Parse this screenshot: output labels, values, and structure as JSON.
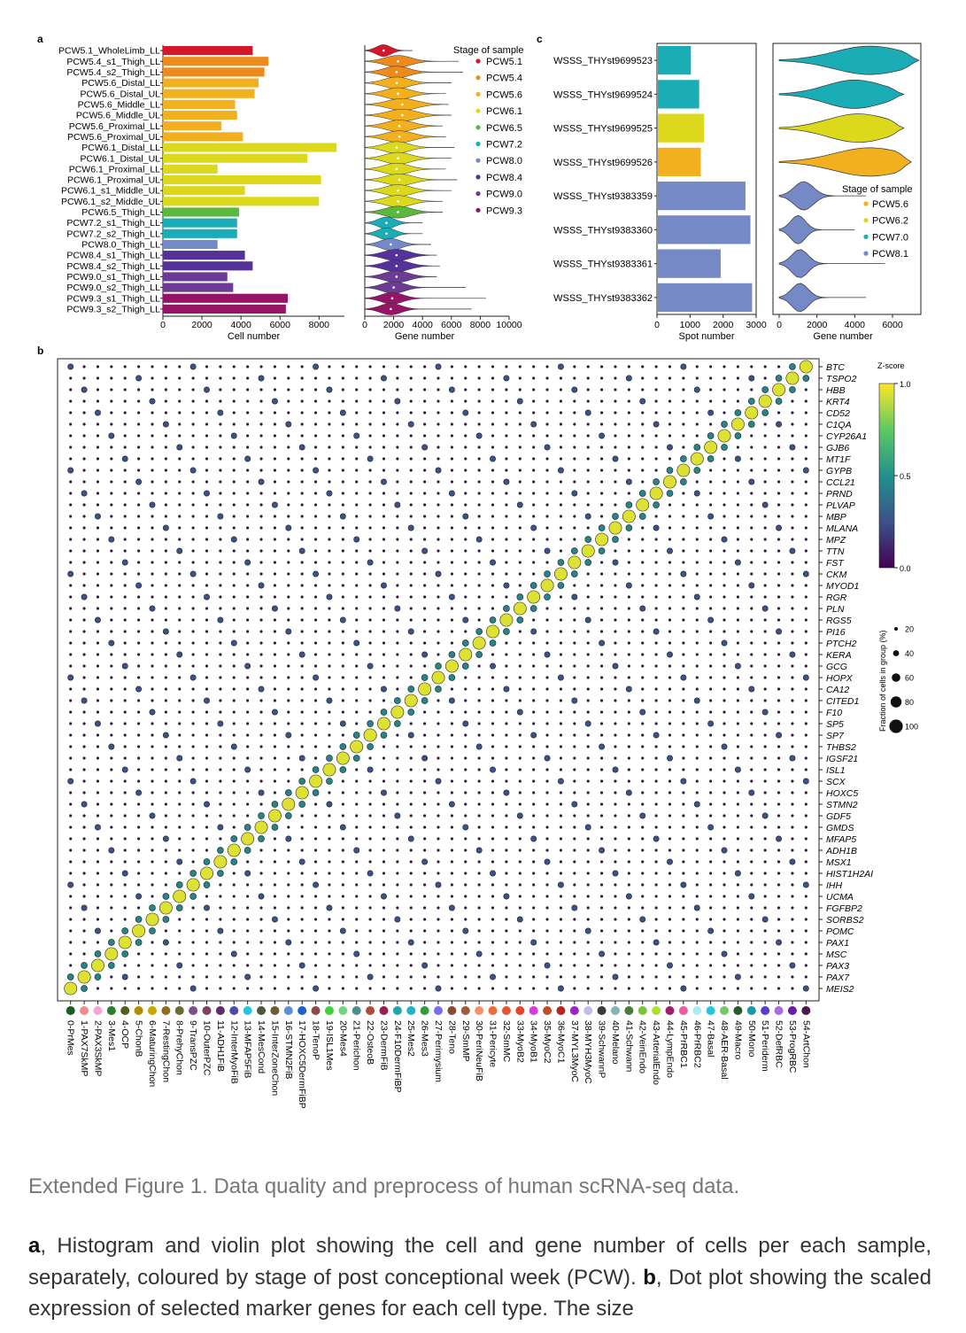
{
  "figure": {
    "panel_a_label": "a",
    "panel_b_label": "b",
    "panel_c_label": "c",
    "legend_title_a": "Stage of sample",
    "legend_title_c": "Stage of sample",
    "zscore_title": "Z-score",
    "zscore_ticks": [
      "1.0",
      "0.5",
      "0.0"
    ],
    "fraction_title": "Fraction of cells in group (%)",
    "fraction_levels": [
      "20",
      "40",
      "60",
      "80",
      "100"
    ]
  },
  "stage_colors": {
    "PCW5.1": "#d4172b",
    "PCW5.4": "#ec8a1c",
    "PCW5.6": "#f2b01e",
    "PCW6.1": "#dcd81c",
    "PCW6.5": "#5ab83c",
    "PCW7.2": "#1aadb6",
    "PCW8.0": "#7589c6",
    "PCW8.4": "#55329a",
    "PCW9.0": "#6c3c94",
    "PCW9.3": "#951468"
  },
  "legend_a": [
    "PCW5.1",
    "PCW5.4",
    "PCW5.6",
    "PCW6.1",
    "PCW6.5",
    "PCW7.2",
    "PCW8.0",
    "PCW8.4",
    "PCW9.0",
    "PCW9.3"
  ],
  "legend_c": [
    "PCW5.6",
    "PCW6.2",
    "PCW7.0",
    "PCW8.1"
  ],
  "legend_c_colors": [
    "#f2b01e",
    "#dcd81c",
    "#1aadb6",
    "#7589c6"
  ],
  "chart_data": [
    {
      "type": "bar",
      "orientation": "horizontal",
      "xlabel": "Cell number",
      "xlim": [
        0,
        9300
      ],
      "xticks": [
        0,
        2000,
        4000,
        6000,
        8000
      ],
      "categories": [
        "PCW5.1_WholeLimb_LL",
        "PCW5.4_s1_Thigh_LL",
        "PCW5.4_s2_Thigh_LL",
        "PCW5.6_Distal_LL",
        "PCW5.6_Distal_UL",
        "PCW5.6_Middle_LL",
        "PCW5.6_Middle_UL",
        "PCW5.6_Proximal_LL",
        "PCW5.6_Proximal_UL",
        "PCW6.1_Distal_LL",
        "PCW6.1_Distal_UL",
        "PCW6.1_Proximal_LL",
        "PCW6.1_Proximal_UL",
        "PCW6.1_s1_Middle_UL",
        "PCW6.1_s2_Middle_UL",
        "PCW6.5_Thigh_LL",
        "PCW7.2_s1_Thigh_LL",
        "PCW7.2_s2_Thigh_LL",
        "PCW8.0_Thigh_LL",
        "PCW8.4_s1_Thigh_LL",
        "PCW8.4_s2_Thigh_LL",
        "PCW9.0_s1_Thigh_LL",
        "PCW9.0_s2_Thigh_LL",
        "PCW9.3_s1_Thigh_LL",
        "PCW9.3_s2_Thigh_LL"
      ],
      "values": [
        4600,
        5400,
        5200,
        4900,
        4700,
        3700,
        3800,
        3000,
        4100,
        8900,
        7400,
        2800,
        8100,
        4200,
        8000,
        3900,
        3800,
        3800,
        2800,
        4200,
        4600,
        3300,
        3600,
        6400,
        6300
      ],
      "stages": [
        "PCW5.1",
        "PCW5.4",
        "PCW5.4",
        "PCW5.6",
        "PCW5.6",
        "PCW5.6",
        "PCW5.6",
        "PCW5.6",
        "PCW5.6",
        "PCW6.1",
        "PCW6.1",
        "PCW6.1",
        "PCW6.1",
        "PCW6.1",
        "PCW6.1",
        "PCW6.5",
        "PCW7.2",
        "PCW7.2",
        "PCW8.0",
        "PCW8.4",
        "PCW8.4",
        "PCW9.0",
        "PCW9.0",
        "PCW9.3",
        "PCW9.3"
      ]
    },
    {
      "type": "violin",
      "xlabel": "Gene number",
      "xlim": [
        0,
        10000
      ],
      "xticks": [
        0,
        2000,
        4000,
        6000,
        8000,
        10000
      ],
      "medians": [
        1300,
        2300,
        2200,
        2200,
        2300,
        2600,
        2600,
        2400,
        2400,
        2200,
        2300,
        2200,
        2400,
        2300,
        2300,
        2300,
        1500,
        1500,
        1800,
        2200,
        2200,
        2200,
        2000,
        1900,
        1800
      ],
      "max": [
        3300,
        6500,
        6800,
        6000,
        5600,
        5800,
        6000,
        5400,
        5600,
        6200,
        6000,
        5600,
        6400,
        6000,
        5400,
        5400,
        4000,
        4000,
        4600,
        5000,
        5200,
        5000,
        7000,
        8400,
        7400
      ]
    },
    {
      "type": "bar",
      "orientation": "horizontal",
      "xlabel": "Spot number",
      "xlim": [
        0,
        3000
      ],
      "xticks": [
        0,
        1000,
        2000,
        3000
      ],
      "categories": [
        "WSSS_THYst9699523",
        "WSSS_THYst9699524",
        "WSSS_THYst9699525",
        "WSSS_THYst9699526",
        "WSSS_THYst9383359",
        "WSSS_THYst9383360",
        "WSSS_THYst9383361",
        "WSSS_THYst9383362"
      ],
      "values": [
        1000,
        1250,
        1400,
        1300,
        2650,
        2800,
        1900,
        2850
      ],
      "stages": [
        "PCW7.0",
        "PCW7.0",
        "PCW6.2",
        "PCW5.6",
        "PCW8.1",
        "PCW8.1",
        "PCW8.1",
        "PCW8.1"
      ]
    },
    {
      "type": "violin",
      "xlabel": "Gene number",
      "xlim": [
        0,
        7500
      ],
      "xticks": [
        0,
        2000,
        4000,
        6000
      ],
      "medians": [
        4800,
        4000,
        4200,
        4800,
        1300,
        1000,
        1100,
        1100
      ],
      "max": [
        7400,
        6600,
        6600,
        7000,
        4600,
        4000,
        5600,
        4600
      ]
    },
    {
      "type": "dot",
      "genes": [
        "BTC",
        "TSPO2",
        "HBB",
        "KRT4",
        "CD52",
        "C1QA",
        "CYP26A1",
        "GJB6",
        "MT1F",
        "GYPB",
        "CCL21",
        "PRND",
        "PLVAP",
        "MBP",
        "MLANA",
        "MPZ",
        "TTN",
        "FST",
        "CKM",
        "MYOD1",
        "RGR",
        "PLN",
        "RGS5",
        "PI16",
        "PTCH2",
        "KERA",
        "GCG",
        "HOPX",
        "CA12",
        "CITED1",
        "F10",
        "SP5",
        "SP7",
        "THBS2",
        "IGSF21",
        "ISL1",
        "SCX",
        "HOXC5",
        "STMN2",
        "GDF5",
        "GMDS",
        "MFAP5",
        "ADH1B",
        "MSX1",
        "HIST1H2AI",
        "IHH",
        "UCMA",
        "FGFBP2",
        "SORBS2",
        "POMC",
        "PAX1",
        "MSC",
        "PAX3",
        "PAX7",
        "MEIS2"
      ],
      "cell_types": [
        "0-PrMes",
        "1-PAX7SkMP",
        "2-PAX3SkMP",
        "3-Mes1",
        "4-OCP",
        "5-ChonB",
        "6-MaturingChon",
        "7-RestingChon",
        "8-PrehyChon",
        "9-TransPZC",
        "10-OuterPZC",
        "11-ADH1FiB",
        "12-InterMyoFiB",
        "13-MFAP5FiB",
        "14-MesCond",
        "15-InterZoneChon",
        "16-STMN2FiB",
        "17-HOXC5DermFiBP",
        "18-TenoP",
        "19-ISL1Mes",
        "20-Mes4",
        "21-Perichon",
        "22-OsteoB",
        "23-DermFiB",
        "24-F10DermFiBP",
        "25-Mes2",
        "26-Mes3",
        "27-Perimysium",
        "28-Teno",
        "29-SmMP",
        "30-PeriNeuFiB",
        "31-Pericyte",
        "32-SmMC",
        "33-MyoB2",
        "34-MyoB1",
        "35-MyoC2",
        "36-MyoC1",
        "37-MYL3MyoC",
        "38-MYH3MyoC",
        "39-SchwannP",
        "40-Melano",
        "41-Schwann",
        "42-VeinEndo",
        "43-ArterialEndo",
        "44-LympEndo",
        "45-PrRBC1",
        "46-PrRBC2",
        "47-Basal",
        "48-AER-Basal",
        "49-Macro",
        "50-Mono",
        "51-Periderm",
        "52-DefRBC",
        "53-ProgRBC",
        "54-ArtChon"
      ],
      "cell_type_colors": [
        "#1b5e20",
        "#f28b8b",
        "#f4a6d7",
        "#2e7d32",
        "#4e5f1e",
        "#b38b00",
        "#c9a800",
        "#8d6e1e",
        "#6b6b3a",
        "#7b4f8a",
        "#7e3f63",
        "#5e2c6e",
        "#4a4ea8",
        "#26c6da",
        "#4e5b3a",
        "#6c5e2e",
        "#5c8fd6",
        "#1e62c8",
        "#8c4a4a",
        "#3fcf3f",
        "#6fd67c",
        "#4f8c8c",
        "#b04a3a",
        "#9a1f4f",
        "#1fa8a8",
        "#22b2c4",
        "#2e9e3e",
        "#7b6cf0",
        "#8a4a3a",
        "#a05a3a",
        "#f4926a",
        "#ef6c3c",
        "#e4572e",
        "#e6442c",
        "#d63cd6",
        "#c44a2a",
        "#b8231e",
        "#9b26c8",
        "#c6b8e8",
        "#3a3a3a",
        "#84b3b3",
        "#4d7b3a",
        "#7bc43a",
        "#a6e22e",
        "#9e1f6b",
        "#ef5aa6",
        "#a9ecf4",
        "#26c6da",
        "#7bc46a",
        "#2a5a2a",
        "#1a9aa6",
        "#5a3cc8",
        "#a86be0",
        "#6a1ea6",
        "#4a1a4a"
      ],
      "zscore_range": [
        0,
        1
      ],
      "size_unit": "% cells in group"
    }
  ],
  "caption": {
    "title": "Extended Figure 1. Data quality and preprocess of human scRNA-seq data.",
    "a_label": "a",
    "a_text": ", Histogram and violin plot showing the cell and gene number of cells per each sample, separately, coloured by stage of post conceptional week (PCW).",
    "b_label": "b",
    "b_text": ", Dot plot showing the scaled expression of selected marker genes for each cell type. The size"
  }
}
